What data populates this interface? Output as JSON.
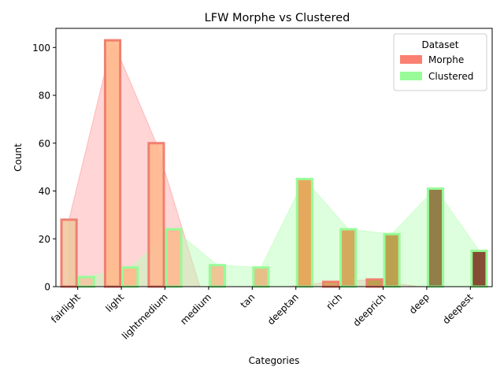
{
  "chart_data": {
    "type": "bar",
    "title": "LFW Morphe vs Clustered",
    "xlabel": "Categories",
    "ylabel": "Count",
    "ylim": [
      0,
      108
    ],
    "yticks": [
      0,
      20,
      40,
      60,
      80,
      100
    ],
    "grid": false,
    "legend": {
      "title": "Dataset",
      "placement": "top-right"
    },
    "categories": [
      "fairlight",
      "light",
      "lightmedium",
      "medium",
      "tan",
      "deeptan",
      "rich",
      "deeprich",
      "deep",
      "deepest"
    ],
    "series": [
      {
        "name": "Morphe",
        "values": [
          28,
          103,
          60,
          0,
          0,
          0,
          2,
          3,
          0,
          0
        ],
        "edge_color": "#f08070",
        "area_color": "#ff9a9a",
        "legend_color": "#fa8072"
      },
      {
        "name": "Clustered",
        "values": [
          4,
          8,
          24,
          9,
          8,
          45,
          24,
          22,
          41,
          15
        ],
        "edge_color": "#98fb98",
        "area_color": "#b6ffb6",
        "legend_color": "#98fb98"
      }
    ],
    "bar_fill_colors": [
      "#f0c8a0",
      "#ffb88a",
      "#ffb990",
      "#f0c08e",
      "#e8b880",
      "#e6a050",
      "#d4a050",
      "#b89840",
      "#8a7038",
      "#7a3820"
    ]
  }
}
